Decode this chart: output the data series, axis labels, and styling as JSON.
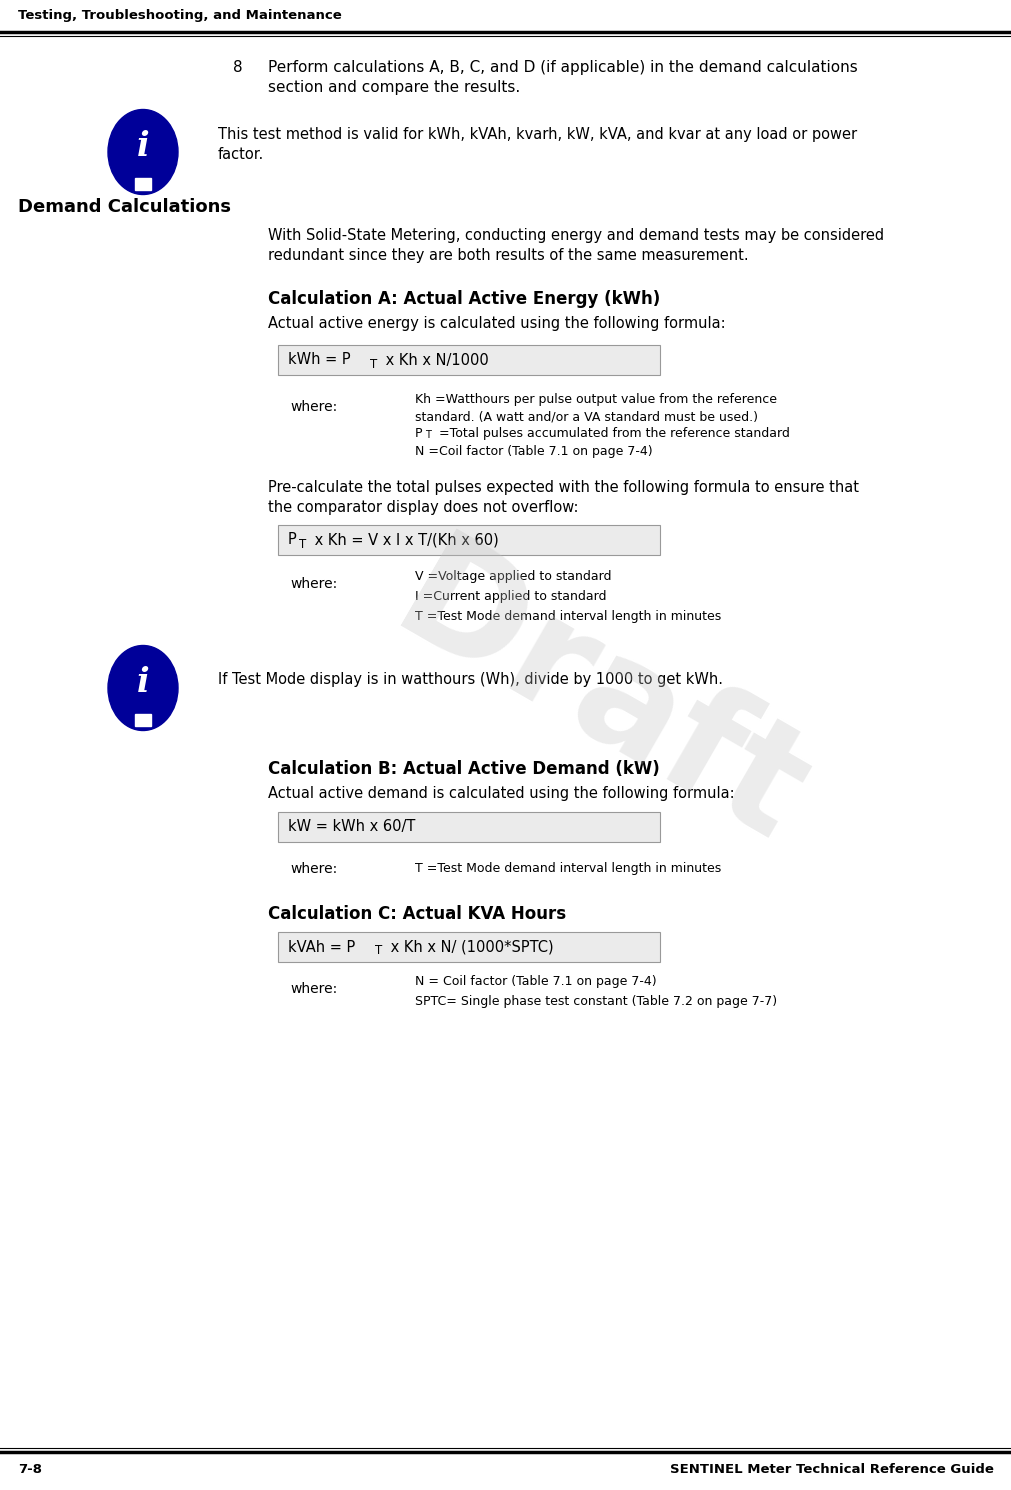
{
  "header_text": "Testing, Troubleshooting, and Maintenance",
  "footer_left": "7-8",
  "footer_right": "SENTINEL Meter Technical Reference Guide",
  "bg_color": "#ffffff",
  "step8_line1": "8    Perform calculations A, B, C, and D (if applicable) in the demand calculations",
  "step8_line2": "section and compare the results.",
  "info_box1_line1": "This test method is valid for kWh, kVAh, kvarh, kW, kVA, and kvar at any load or power",
  "info_box1_line2": "factor.",
  "section_heading": "Demand Calculations",
  "demand_intro1": "With Solid-State Metering, conducting energy and demand tests may be considered",
  "demand_intro2": "redundant since they are both results of the same measurement.",
  "calc_a_heading": "Calculation A: Actual Active Energy (kWh)",
  "calc_a_intro": "Actual active energy is calculated using the following formula:",
  "precalc_line1": "Pre-calculate the total pulses expected with the following formula to ensure that",
  "precalc_line2": "the comparator display does not overflow:",
  "info_box2_text": "If Test Mode display is in watthours (Wh), divide by 1000 to get kWh.",
  "calc_b_heading": "Calculation B: Actual Active Demand (kW)",
  "calc_b_intro": "Actual active demand is calculated using the following formula:",
  "formula_c_box": "kW = kWh x 60/T",
  "where_c_item": "T =Test Mode demand interval length in minutes",
  "calc_c_heading": "Calculation C: Actual KVA Hours",
  "where_d_items": [
    "N = Coil factor (Table 7.1 on page 7-4)",
    "SPTC= Single phase test constant (Table 7.2 on page 7-7)"
  ],
  "draft_watermark": "Draft",
  "info_icon_color": "#000099",
  "formula_box_bg": "#ebebeb",
  "formula_box_border": "#999999"
}
